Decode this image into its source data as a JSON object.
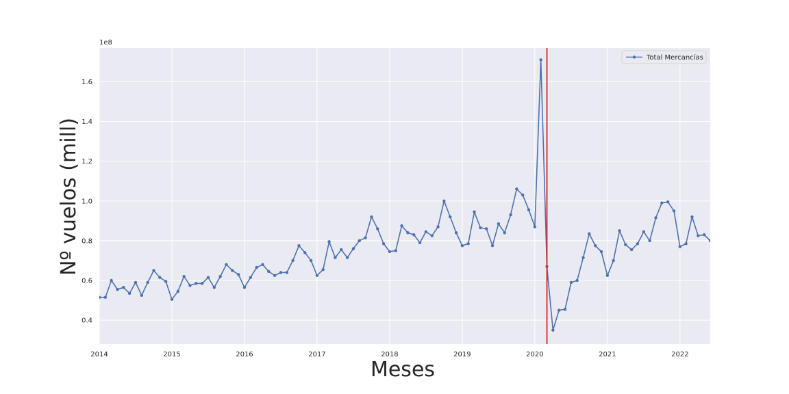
{
  "chart_data": {
    "type": "line",
    "title": "",
    "xlabel": "Meses",
    "ylabel": "Nº vuelos (mill)",
    "y_offset_label": "1e8",
    "xlim": [
      2014.0,
      2022.4167
    ],
    "ylim": [
      0.28,
      1.77
    ],
    "xticks": [
      2014,
      2015,
      2016,
      2017,
      2018,
      2019,
      2020,
      2021,
      2022
    ],
    "xtick_labels": [
      "2014",
      "2015",
      "2016",
      "2017",
      "2018",
      "2019",
      "2020",
      "2021",
      "2022"
    ],
    "yticks": [
      0.4,
      0.6,
      0.8,
      1.0,
      1.2,
      1.4,
      1.6
    ],
    "ytick_labels": [
      "0.4",
      "0.6",
      "0.8",
      "1.0",
      "1.2",
      "1.4",
      "1.6"
    ],
    "grid": true,
    "legend_position": "top-right",
    "background_color": "#eaeaf2",
    "series": [
      {
        "name": "Total Mercancías",
        "color": "#4c72b0",
        "marker": "dot",
        "x": [
          "2014-01",
          "2014-02",
          "2014-03",
          "2014-04",
          "2014-05",
          "2014-06",
          "2014-07",
          "2014-08",
          "2014-09",
          "2014-10",
          "2014-11",
          "2014-12",
          "2015-01",
          "2015-02",
          "2015-03",
          "2015-04",
          "2015-05",
          "2015-06",
          "2015-07",
          "2015-08",
          "2015-09",
          "2015-10",
          "2015-11",
          "2015-12",
          "2016-01",
          "2016-02",
          "2016-03",
          "2016-04",
          "2016-05",
          "2016-06",
          "2016-07",
          "2016-08",
          "2016-09",
          "2016-10",
          "2016-11",
          "2016-12",
          "2017-01",
          "2017-02",
          "2017-03",
          "2017-04",
          "2017-05",
          "2017-06",
          "2017-07",
          "2017-08",
          "2017-09",
          "2017-10",
          "2017-11",
          "2017-12",
          "2018-01",
          "2018-02",
          "2018-03",
          "2018-04",
          "2018-05",
          "2018-06",
          "2018-07",
          "2018-08",
          "2018-09",
          "2018-10",
          "2018-11",
          "2018-12",
          "2019-01",
          "2019-02",
          "2019-03",
          "2019-04",
          "2019-05",
          "2019-06",
          "2019-07",
          "2019-08",
          "2019-09",
          "2019-10",
          "2019-11",
          "2019-12",
          "2020-01",
          "2020-02",
          "2020-03",
          "2020-04",
          "2020-05",
          "2020-06",
          "2020-07",
          "2020-08",
          "2020-09",
          "2020-10",
          "2020-11",
          "2020-12",
          "2021-01",
          "2021-02",
          "2021-03",
          "2021-04",
          "2021-05",
          "2021-06",
          "2021-07",
          "2021-08",
          "2021-09",
          "2021-10",
          "2021-11",
          "2021-12",
          "2022-01",
          "2022-02",
          "2022-03",
          "2022-04",
          "2022-05",
          "2022-06"
        ],
        "values": [
          0.515,
          0.515,
          0.6,
          0.555,
          0.565,
          0.535,
          0.59,
          0.525,
          0.59,
          0.65,
          0.615,
          0.595,
          0.505,
          0.545,
          0.62,
          0.575,
          0.585,
          0.585,
          0.615,
          0.565,
          0.62,
          0.68,
          0.65,
          0.63,
          0.565,
          0.615,
          0.665,
          0.68,
          0.645,
          0.625,
          0.64,
          0.64,
          0.7,
          0.775,
          0.74,
          0.7,
          0.625,
          0.655,
          0.795,
          0.715,
          0.755,
          0.715,
          0.76,
          0.8,
          0.815,
          0.92,
          0.86,
          0.785,
          0.745,
          0.75,
          0.875,
          0.84,
          0.83,
          0.79,
          0.845,
          0.825,
          0.87,
          1.0,
          0.92,
          0.84,
          0.775,
          0.785,
          0.945,
          0.865,
          0.86,
          0.775,
          0.885,
          0.84,
          0.93,
          1.06,
          1.03,
          0.955,
          0.87,
          1.71,
          0.67,
          0.35,
          0.45,
          0.455,
          0.59,
          0.6,
          0.715,
          0.835,
          0.775,
          0.745,
          0.625,
          0.7,
          0.85,
          0.78,
          0.755,
          0.785,
          0.845,
          0.8,
          0.915,
          0.99,
          0.995,
          0.95,
          0.77,
          0.785,
          0.92,
          0.825,
          0.83,
          0.8
        ]
      }
    ],
    "vertical_line": {
      "x": "2020-03",
      "color": "#e02020"
    }
  }
}
